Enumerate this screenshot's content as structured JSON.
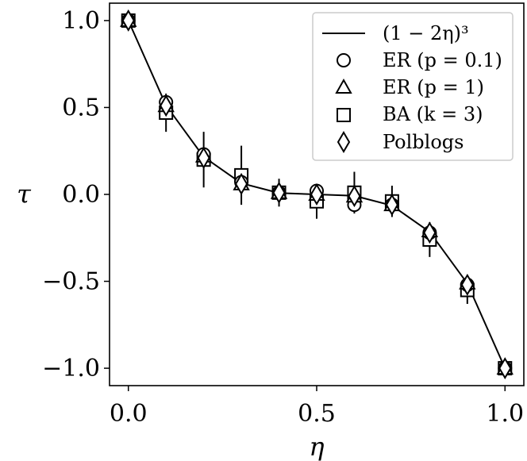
{
  "chart_data": {
    "type": "scatter",
    "xlabel": "η",
    "ylabel": "τ",
    "xlim": [
      -0.05,
      1.05
    ],
    "ylim": [
      -1.1,
      1.1
    ],
    "xticks": [
      0.0,
      0.5,
      1.0
    ],
    "xtick_labels": [
      "0.0",
      "0.5",
      "1.0"
    ],
    "yticks": [
      1.0,
      0.5,
      0.0,
      -0.5,
      -1.0
    ],
    "ytick_labels": [
      "1.0",
      "0.5",
      "0.0",
      "−0.5",
      "−1.0"
    ],
    "grid": false,
    "legend_position": "top-right",
    "curve": {
      "name": "(1 − 2η)³",
      "x": [
        0.0,
        0.1,
        0.2,
        0.3,
        0.4,
        0.5,
        0.6,
        0.7,
        0.8,
        0.9,
        1.0
      ],
      "y": [
        1.0,
        0.512,
        0.216,
        0.064,
        0.008,
        0.0,
        -0.008,
        -0.064,
        -0.216,
        -0.512,
        -1.0
      ]
    },
    "series": [
      {
        "name": "ER (p = 0.1)",
        "marker": "circle",
        "x": [
          0.0,
          0.1,
          0.2,
          0.3,
          0.4,
          0.5,
          0.6,
          0.7,
          0.8,
          0.9,
          1.0
        ],
        "y": [
          1.0,
          0.53,
          0.23,
          0.07,
          0.01,
          0.02,
          -0.06,
          -0.06,
          -0.22,
          -0.52,
          -1.0
        ]
      },
      {
        "name": "ER (p = 1)",
        "marker": "triangle",
        "x": [
          0.0,
          0.1,
          0.2,
          0.3,
          0.4,
          0.5,
          0.6,
          0.7,
          0.8,
          0.9,
          1.0
        ],
        "y": [
          1.0,
          0.51,
          0.22,
          0.06,
          0.01,
          0.0,
          -0.01,
          -0.06,
          -0.21,
          -0.51,
          -1.0
        ]
      },
      {
        "name": "BA (k = 3)",
        "marker": "square",
        "x": [
          0.0,
          0.1,
          0.2,
          0.3,
          0.4,
          0.5,
          0.6,
          0.7,
          0.8,
          0.9,
          1.0
        ],
        "y": [
          1.0,
          0.47,
          0.2,
          0.11,
          0.01,
          -0.04,
          0.01,
          -0.04,
          -0.26,
          -0.55,
          -1.0
        ],
        "err": [
          0,
          0.11,
          0.16,
          0.17,
          0.08,
          0.1,
          0.12,
          0.09,
          0.1,
          0.08,
          0
        ]
      },
      {
        "name": "Polblogs",
        "marker": "diamond",
        "x": [
          0.0,
          0.1,
          0.2,
          0.3,
          0.4,
          0.5,
          0.6,
          0.7,
          0.8,
          0.9,
          1.0
        ],
        "y": [
          1.0,
          0.51,
          0.21,
          0.06,
          0.01,
          0.0,
          -0.01,
          -0.06,
          -0.22,
          -0.52,
          -1.0
        ]
      }
    ]
  }
}
